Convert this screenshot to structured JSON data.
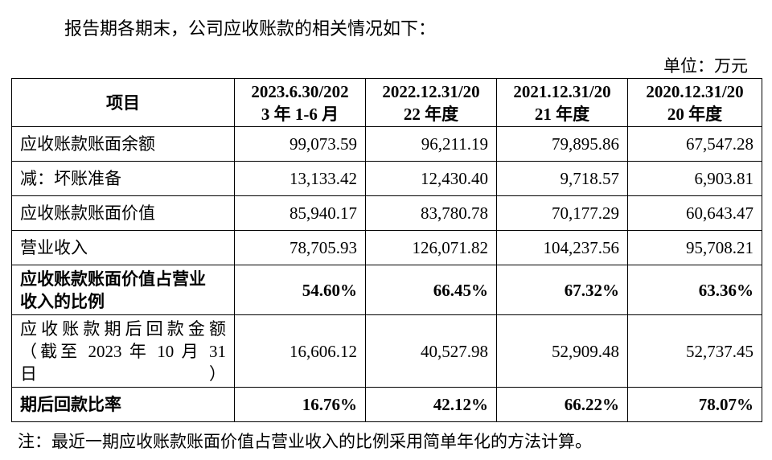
{
  "intro": "报告期各期末，公司应收账款的相关情况如下：",
  "unit": "单位：万元",
  "table": {
    "header": [
      [
        "项目"
      ],
      [
        "2023.6.30/202",
        "3 年 1-6 月"
      ],
      [
        "2022.12.31/20",
        "22 年度"
      ],
      [
        "2021.12.31/20",
        "21 年度"
      ],
      [
        "2020.12.31/20",
        "20 年度"
      ]
    ],
    "rows": [
      [
        [
          "应收账款账面余额"
        ],
        "99,073.59",
        "96,211.19",
        "79,895.86",
        "67,547.28"
      ],
      [
        [
          "减：坏账准备"
        ],
        "13,133.42",
        "12,430.40",
        "9,718.57",
        "6,903.81"
      ],
      [
        [
          "应收账款账面价值"
        ],
        "85,940.17",
        "83,780.78",
        "70,177.29",
        "60,643.47"
      ],
      [
        [
          "营业收入"
        ],
        "78,705.93",
        "126,071.82",
        "104,237.56",
        "95,708.21"
      ],
      [
        [
          "应收账款账面价值占营业",
          "收入的比例"
        ],
        "54.60%",
        "66.45%",
        "67.32%",
        "63.36%"
      ],
      [
        [
          "应收账款期后回款金额",
          "（截至 2023 年 10 月 31",
          "日）"
        ],
        "16,606.12",
        "40,527.98",
        "52,909.48",
        "52,737.45"
      ],
      [
        [
          "期后回款比率"
        ],
        "16.76%",
        "42.12%",
        "66.22%",
        "78.07%"
      ]
    ]
  },
  "note": "注：最近一期应收账款账面价值占营业收入的比例采用简单年化的方法计算。"
}
